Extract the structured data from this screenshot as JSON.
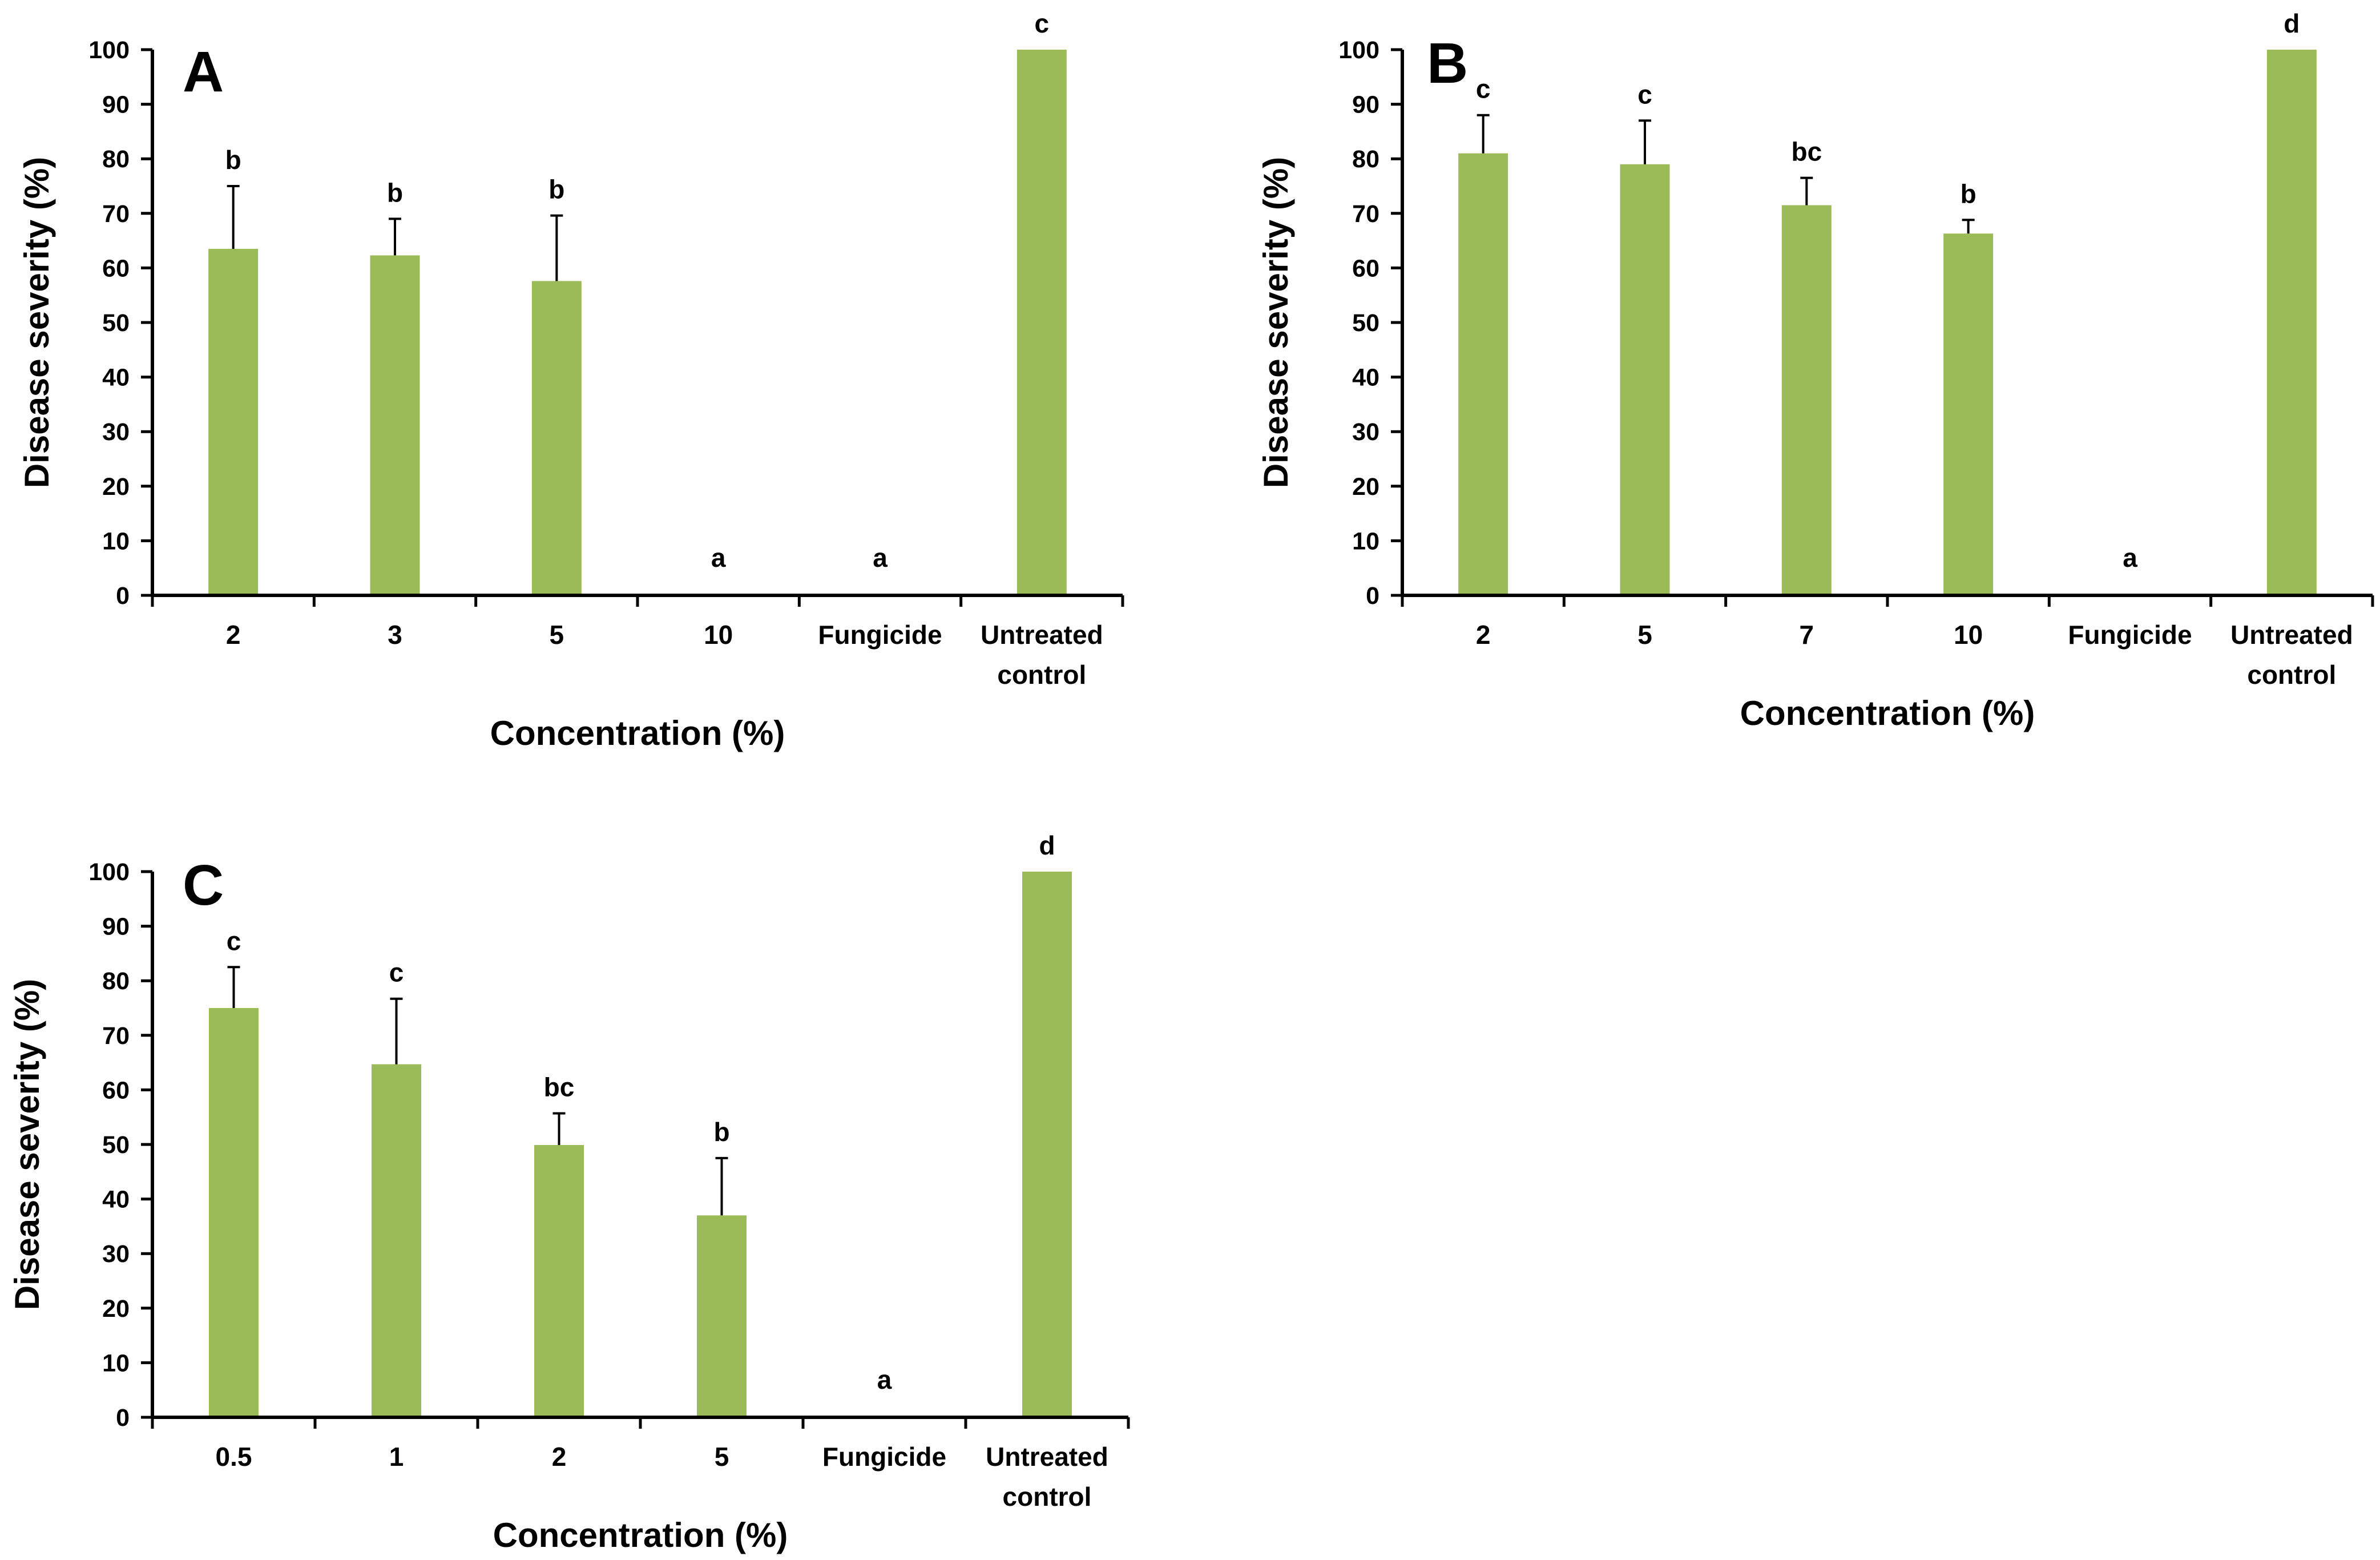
{
  "chart_data": [
    {
      "type": "bar",
      "panel": "A",
      "categories": [
        [
          "2"
        ],
        [
          "3"
        ],
        [
          "5"
        ],
        [
          "10"
        ],
        [
          "Fungicide"
        ],
        [
          "Untreated",
          "control"
        ]
      ],
      "values": [
        63.5,
        62.3,
        57.6,
        0,
        0,
        100
      ],
      "errors": [
        11.5,
        6.7,
        12.0,
        0,
        0,
        0
      ],
      "significance": [
        "b",
        "b",
        "b",
        "a",
        "a",
        "c"
      ],
      "xlabel": "Concentration (%)",
      "ylabel": "Disease severity (%)",
      "ylim": [
        0,
        100
      ],
      "yticks": [
        0,
        10,
        20,
        30,
        40,
        50,
        60,
        70,
        80,
        90,
        100
      ],
      "bar_color": "#9bbb59",
      "grid": false,
      "legend": "none"
    },
    {
      "type": "bar",
      "panel": "B",
      "categories": [
        [
          "2"
        ],
        [
          "5"
        ],
        [
          "7"
        ],
        [
          "10"
        ],
        [
          "Fungicide"
        ],
        [
          "Untreated",
          "control"
        ]
      ],
      "values": [
        81.0,
        79.0,
        71.5,
        66.3,
        0,
        100
      ],
      "errors": [
        7.0,
        8.0,
        5.0,
        2.5,
        0,
        0
      ],
      "significance": [
        "c",
        "c",
        "bc",
        "b",
        "a",
        "d"
      ],
      "xlabel": "Concentration (%)",
      "ylabel": "Disease severity (%)",
      "ylim": [
        0,
        100
      ],
      "yticks": [
        0,
        10,
        20,
        30,
        40,
        50,
        60,
        70,
        80,
        90,
        100
      ],
      "bar_color": "#9bbb59",
      "grid": false,
      "legend": "none"
    },
    {
      "type": "bar",
      "panel": "C",
      "categories": [
        [
          "0.5"
        ],
        [
          "1"
        ],
        [
          "2"
        ],
        [
          "5"
        ],
        [
          "Fungicide"
        ],
        [
          "Untreated",
          "control"
        ]
      ],
      "values": [
        75.0,
        64.7,
        49.9,
        37.0,
        0,
        100
      ],
      "errors": [
        7.5,
        12.0,
        5.8,
        10.5,
        0,
        0
      ],
      "significance": [
        "c",
        "c",
        "bc",
        "b",
        "a",
        "d"
      ],
      "xlabel": "Concentration (%)",
      "ylabel": "Disease severity (%)",
      "ylim": [
        0,
        100
      ],
      "yticks": [
        0,
        10,
        20,
        30,
        40,
        50,
        60,
        70,
        80,
        90,
        100
      ],
      "bar_color": "#9bbb59",
      "grid": false,
      "legend": "none"
    }
  ]
}
